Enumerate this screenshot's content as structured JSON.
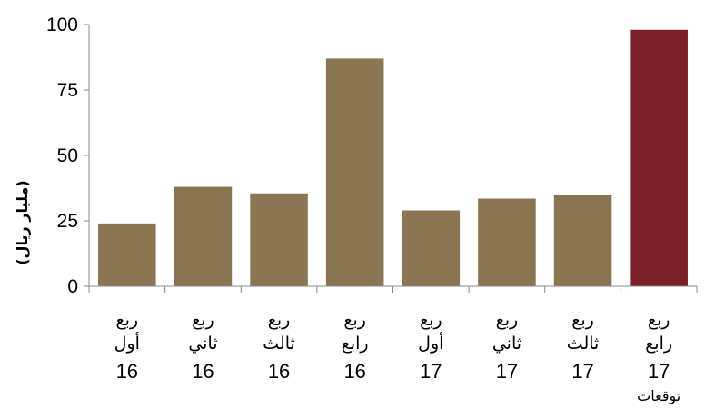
{
  "chart_data": {
    "type": "bar",
    "title": "",
    "xlabel": "",
    "ylabel": "(مليار ريال)",
    "ylim": [
      0,
      100
    ],
    "yticks": [
      0,
      25,
      50,
      75,
      100
    ],
    "grid": false,
    "colors": {
      "actual": "#8b7653",
      "forecast": "#7b1f27"
    },
    "categories": [
      {
        "line1": "ربع",
        "line2": "أول",
        "line3": "16",
        "note": ""
      },
      {
        "line1": "ربع",
        "line2": "ثاني",
        "line3": "16",
        "note": ""
      },
      {
        "line1": "ربع",
        "line2": "ثالث",
        "line3": "16",
        "note": ""
      },
      {
        "line1": "ربع",
        "line2": "رابع",
        "line3": "16",
        "note": ""
      },
      {
        "line1": "ربع",
        "line2": "أول",
        "line3": "17",
        "note": ""
      },
      {
        "line1": "ربع",
        "line2": "ثاني",
        "line3": "17",
        "note": ""
      },
      {
        "line1": "ربع",
        "line2": "ثالث",
        "line3": "17",
        "note": ""
      },
      {
        "line1": "ربع",
        "line2": "رابع",
        "line3": "17",
        "note": "توقعات"
      }
    ],
    "values": [
      24,
      38,
      35.5,
      87,
      29,
      33.5,
      35,
      98
    ],
    "forecast": [
      false,
      false,
      false,
      false,
      false,
      false,
      false,
      true
    ]
  }
}
